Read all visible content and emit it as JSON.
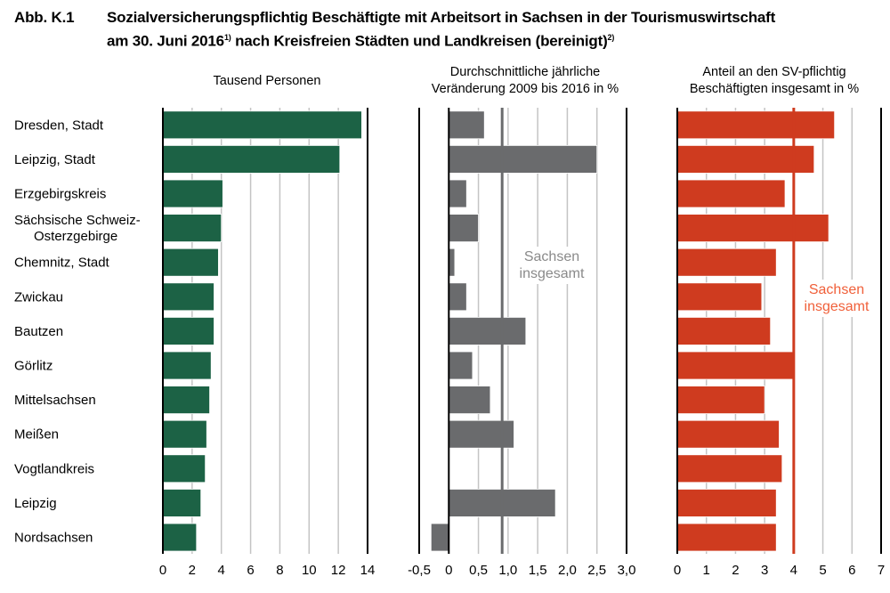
{
  "title": {
    "number": "Abb. K.1",
    "line1": "Sozialversicherungspflichtig Beschäftigte mit Arbeitsort in Sachsen in der Tourismuswirtschaft",
    "line2a": "am 30. Juni 2016",
    "fn1": "1)",
    "line2b": " nach Kreisfreien Städten und Landkreisen (bereinigt)",
    "fn2": "2)"
  },
  "chart_data": [
    {
      "type": "bar",
      "orientation": "horizontal",
      "title": "Tausend Personen",
      "categories": [
        "Dresden, Stadt",
        "Leipzig, Stadt",
        "Erzgebirgskreis",
        "Sächsische Schweiz-\nOsterzgebirge",
        "Chemnitz, Stadt",
        "Zwickau",
        "Bautzen",
        "Görlitz",
        "Mittelsachsen",
        "Meißen",
        "Vogtlandkreis",
        "Leipzig",
        "Nordsachsen"
      ],
      "values": [
        13.6,
        12.1,
        4.1,
        4.0,
        3.8,
        3.5,
        3.5,
        3.3,
        3.2,
        3.0,
        2.9,
        2.6,
        2.3
      ],
      "xlim": [
        0,
        14
      ],
      "ticks": [
        0,
        2,
        4,
        6,
        8,
        10,
        12,
        14
      ],
      "tick_labels": [
        "0",
        "2",
        "4",
        "6",
        "8",
        "10",
        "12",
        "14"
      ],
      "grid": true,
      "color": "#1c6245"
    },
    {
      "type": "bar",
      "orientation": "horizontal",
      "title": "Durchschnittliche jährliche\nVeränderung 2009 bis 2016 in %",
      "values": [
        0.6,
        2.5,
        0.3,
        0.5,
        0.1,
        0.3,
        1.3,
        0.4,
        0.7,
        1.1,
        0.0,
        1.8,
        -0.3
      ],
      "xlim": [
        -0.5,
        3.0
      ],
      "ticks": [
        -0.5,
        0,
        0.5,
        1.0,
        1.5,
        2.0,
        2.5,
        3.0
      ],
      "tick_labels": [
        "-0,5",
        "0",
        "0,5",
        "1,0",
        "1,5",
        "2,0",
        "2,5",
        "3,0"
      ],
      "grid": true,
      "color": "#6a6b6d",
      "reference": {
        "label": "Sachsen\ninsgesamt",
        "value": 0.9,
        "color": "#6a6b6d",
        "label_color": "#8a8a8a"
      }
    },
    {
      "type": "bar",
      "orientation": "horizontal",
      "title": "Anteil an den SV-pflichtig\nBeschäftigten insgesamt in %",
      "values": [
        5.4,
        4.7,
        3.7,
        5.2,
        3.4,
        2.9,
        3.2,
        4.0,
        3.0,
        3.5,
        3.6,
        3.4,
        3.4
      ],
      "xlim": [
        0,
        7
      ],
      "ticks": [
        0,
        1,
        2,
        3,
        4,
        5,
        6,
        7
      ],
      "tick_labels": [
        "0",
        "1",
        "2",
        "3",
        "4",
        "5",
        "6",
        "7"
      ],
      "grid": true,
      "color": "#cf3b1f",
      "reference": {
        "label": "Sachsen\ninsgesamt",
        "value": 4.0,
        "color": "#cf3b1f",
        "label_color": "#f0603a"
      }
    }
  ]
}
